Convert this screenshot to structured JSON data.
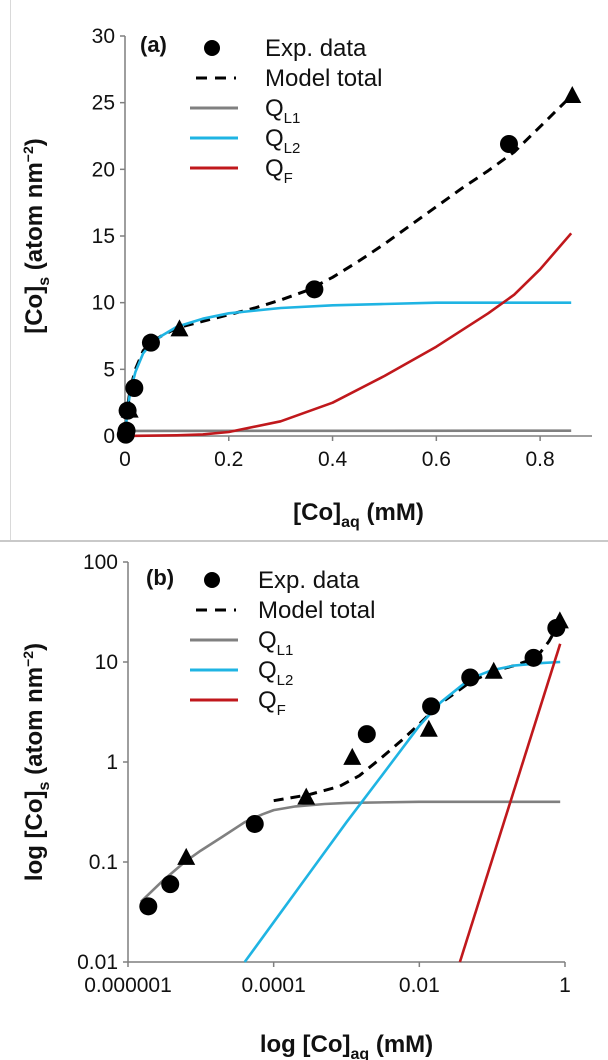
{
  "colors": {
    "exp": "#000000",
    "model_total": "#000000",
    "ql1": "#808080",
    "ql2": "#1fb4e3",
    "qf": "#c0181c",
    "axis": "#7f7f7f"
  },
  "chart_data": [
    {
      "type": "line",
      "panel_label": "(a)",
      "xlabel": "[Co]",
      "xlabel_sub": "aq",
      "xlabel_unit": " (mM)",
      "ylabel": "[Co]",
      "ylabel_sub": "s",
      "ylabel_unit": " (atom nm",
      "ylabel_sup": "−2",
      "ylabel_close": ")",
      "xscale": "linear",
      "yscale": "linear",
      "xlim": [
        0,
        0.9
      ],
      "ylim": [
        0,
        30
      ],
      "xticks": [
        0,
        0.2,
        0.4,
        0.6,
        0.8
      ],
      "xtick_labels": [
        "0",
        "0.2",
        "0.4",
        "0.6",
        "0.8"
      ],
      "yticks": [
        0,
        5,
        10,
        15,
        20,
        25,
        30
      ],
      "ytick_labels": [
        "0",
        "5",
        "10",
        "15",
        "20",
        "25",
        "30"
      ],
      "grid": false,
      "legend_position": "top-left",
      "legend": [
        {
          "name": "Exp. data",
          "sub": "",
          "key": "exp",
          "kind": "marker-circle"
        },
        {
          "name": "Model total",
          "sub": "",
          "key": "model_total",
          "kind": "dashed"
        },
        {
          "name": "Q",
          "sub": "L1",
          "key": "ql1",
          "kind": "line"
        },
        {
          "name": "Q",
          "sub": "L2",
          "key": "ql2",
          "kind": "line"
        },
        {
          "name": "Q",
          "sub": "F",
          "key": "qf",
          "kind": "line"
        }
      ],
      "points_circle": [
        [
          0.0015,
          0.1
        ],
        [
          0.003,
          0.4
        ],
        [
          0.005,
          1.9
        ],
        [
          0.018,
          3.6
        ],
        [
          0.05,
          7.0
        ],
        [
          0.365,
          11.0
        ],
        [
          0.74,
          21.9
        ]
      ],
      "points_triangle": [
        [
          0.009,
          1.9
        ],
        [
          0.105,
          8.0
        ],
        [
          0.862,
          25.5
        ]
      ],
      "series": [
        {
          "key": "model_total",
          "style": "dashed",
          "x": [
            0,
            0.005,
            0.01,
            0.02,
            0.035,
            0.05,
            0.07,
            0.1,
            0.15,
            0.2,
            0.25,
            0.3,
            0.35,
            0.4,
            0.45,
            0.5,
            0.55,
            0.6,
            0.65,
            0.7,
            0.75,
            0.8,
            0.86
          ],
          "y": [
            0,
            2.2,
            3.5,
            5.0,
            6.4,
            7.0,
            7.5,
            8.1,
            8.6,
            9.1,
            9.6,
            10.2,
            10.9,
            11.9,
            13.1,
            14.4,
            15.8,
            17.2,
            18.6,
            19.9,
            21.3,
            23.2,
            25.5
          ]
        },
        {
          "key": "ql1",
          "style": "solid",
          "x": [
            0,
            0.002,
            0.005,
            0.01,
            0.86
          ],
          "y": [
            0,
            0.25,
            0.35,
            0.38,
            0.4
          ]
        },
        {
          "key": "ql2",
          "style": "solid",
          "x": [
            0,
            0.005,
            0.01,
            0.02,
            0.035,
            0.05,
            0.07,
            0.1,
            0.15,
            0.2,
            0.3,
            0.4,
            0.5,
            0.6,
            0.7,
            0.86
          ],
          "y": [
            0,
            2.0,
            3.3,
            4.8,
            6.2,
            6.9,
            7.5,
            8.2,
            8.8,
            9.2,
            9.6,
            9.8,
            9.9,
            10.0,
            10.0,
            10.0
          ]
        },
        {
          "key": "qf",
          "style": "solid",
          "x": [
            0,
            0.1,
            0.15,
            0.2,
            0.3,
            0.4,
            0.5,
            0.6,
            0.7,
            0.75,
            0.8,
            0.86
          ],
          "y": [
            0,
            0.05,
            0.12,
            0.3,
            1.1,
            2.5,
            4.5,
            6.7,
            9.2,
            10.6,
            12.5,
            15.2
          ]
        }
      ]
    },
    {
      "type": "line",
      "panel_label": "(b)",
      "xlabel": "log [Co]",
      "xlabel_sub": "aq",
      "xlabel_unit": " (mM)",
      "ylabel": "log [Co]",
      "ylabel_sub": "s",
      "ylabel_unit": " (atom nm",
      "ylabel_sup": "−2",
      "ylabel_close": ")",
      "xscale": "log",
      "yscale": "log",
      "xlim": [
        1e-06,
        1
      ],
      "ylim": [
        0.01,
        100
      ],
      "xticks": [
        1e-06,
        0.0001,
        0.01,
        1
      ],
      "xtick_labels": [
        "0.000001",
        "0.0001",
        "0.01",
        "1"
      ],
      "yticks": [
        0.01,
        0.1,
        1,
        10,
        100
      ],
      "ytick_labels": [
        "0.01",
        "0.1",
        "1",
        "10",
        "100"
      ],
      "grid": false,
      "legend_position": "top-left",
      "legend": [
        {
          "name": "Exp. data",
          "sub": "",
          "key": "exp",
          "kind": "marker-circle"
        },
        {
          "name": "Model total",
          "sub": "",
          "key": "model_total",
          "kind": "dashed"
        },
        {
          "name": "Q",
          "sub": "L1",
          "key": "ql1",
          "kind": "line"
        },
        {
          "name": "Q",
          "sub": "L2",
          "key": "ql2",
          "kind": "line"
        },
        {
          "name": "Q",
          "sub": "F",
          "key": "qf",
          "kind": "line"
        }
      ],
      "points_circle": [
        [
          1.9e-06,
          0.036
        ],
        [
          3.8e-06,
          0.06
        ],
        [
          5.5e-05,
          0.24
        ],
        [
          0.0019,
          1.9
        ],
        [
          0.0145,
          3.6
        ],
        [
          0.05,
          7.0
        ],
        [
          0.37,
          11.0
        ],
        [
          0.76,
          21.9
        ]
      ],
      "points_triangle": [
        [
          6.3e-06,
          0.11
        ],
        [
          0.00028,
          0.44
        ],
        [
          0.0012,
          1.1
        ],
        [
          0.0135,
          2.1
        ],
        [
          0.105,
          8.0
        ],
        [
          0.85,
          25.5
        ]
      ],
      "series": [
        {
          "key": "model_total",
          "style": "dashed",
          "x": [
            0.0001,
            0.0003,
            0.0008,
            0.0015,
            0.003,
            0.006,
            0.01,
            0.02,
            0.05,
            0.1,
            0.2,
            0.4,
            0.6,
            0.86
          ],
          "y": [
            0.41,
            0.47,
            0.57,
            0.73,
            1.1,
            1.7,
            2.4,
            3.9,
            6.3,
            8.0,
            9.2,
            11.0,
            16.0,
            25.5
          ]
        },
        {
          "key": "ql1",
          "style": "solid",
          "x": [
            1.5e-06,
            3e-06,
            6e-06,
            1e-05,
            2e-05,
            4e-05,
            7e-05,
            0.0001,
            0.0002,
            0.0005,
            0.001,
            0.01,
            0.1,
            0.86
          ],
          "y": [
            0.04,
            0.065,
            0.1,
            0.13,
            0.18,
            0.25,
            0.3,
            0.33,
            0.36,
            0.38,
            0.39,
            0.4,
            0.4,
            0.4
          ]
        },
        {
          "key": "ql2",
          "style": "solid",
          "x": [
            4e-05,
            0.0001,
            0.0003,
            0.001,
            0.003,
            0.01,
            0.02,
            0.05,
            0.1,
            0.2,
            0.5,
            0.86
          ],
          "y": [
            0.01,
            0.025,
            0.075,
            0.25,
            0.72,
            2.3,
            4.0,
            6.8,
            8.3,
            9.2,
            9.8,
            10.0
          ]
        },
        {
          "key": "qf",
          "style": "solid",
          "x": [
            0.036,
            0.86
          ],
          "y": [
            0.01,
            15.2
          ]
        }
      ]
    }
  ]
}
